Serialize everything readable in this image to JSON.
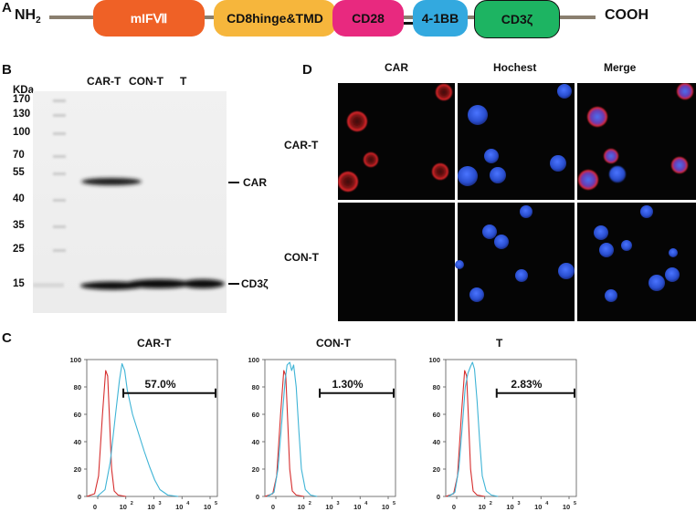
{
  "panel_a": {
    "label": "A",
    "n_term": "NH",
    "n_sub": "2",
    "c_term": "COOH",
    "domains": [
      {
        "name": "mIFⅦ",
        "color": "#ef6126"
      },
      {
        "name": "CD8hinge&TMD",
        "color": "#f6b63c"
      },
      {
        "name": "CD28",
        "color": "#e8297f"
      },
      {
        "name": "4-1BB",
        "color": "#33a9df"
      },
      {
        "name": "CD3ζ",
        "color": "#1db462"
      }
    ]
  },
  "panel_b": {
    "label": "B",
    "unit": "KDa",
    "markers": [
      "170",
      "130",
      "100",
      "70",
      "55",
      "40",
      "35",
      "25",
      "15"
    ],
    "lanes": [
      "CAR-T",
      "CON-T",
      "T"
    ],
    "bands": [
      {
        "label": "CAR",
        "lane_intensity": [
          1,
          0,
          0
        ]
      },
      {
        "label": "CD3ζ",
        "lane_intensity": [
          1,
          1,
          1
        ]
      }
    ]
  },
  "panel_c": {
    "label": "C",
    "y_ticks": [
      "100",
      "80",
      "60",
      "40",
      "20",
      "0"
    ],
    "x_ticks": [
      {
        "b": "0",
        "e": ""
      },
      {
        "b": "10",
        "e": "2"
      },
      {
        "b": "10",
        "e": "3"
      },
      {
        "b": "10",
        "e": "4"
      },
      {
        "b": "10",
        "e": "5"
      }
    ],
    "plots": [
      {
        "title": "CAR-T",
        "gate_label": "57.0%"
      },
      {
        "title": "CON-T",
        "gate_label": "1.30%"
      },
      {
        "title": "T",
        "gate_label": "2.83%"
      }
    ]
  },
  "panel_d": {
    "label": "D",
    "columns": [
      "CAR",
      "Hochest",
      "Merge"
    ],
    "rows": [
      "CAR-T",
      "CON-T"
    ]
  },
  "colors": {
    "red_trace": "#d62f2f",
    "blue_trace": "#3fb4d6",
    "cell_blue": "#2f5bd9",
    "cell_red": "#d8232a"
  }
}
